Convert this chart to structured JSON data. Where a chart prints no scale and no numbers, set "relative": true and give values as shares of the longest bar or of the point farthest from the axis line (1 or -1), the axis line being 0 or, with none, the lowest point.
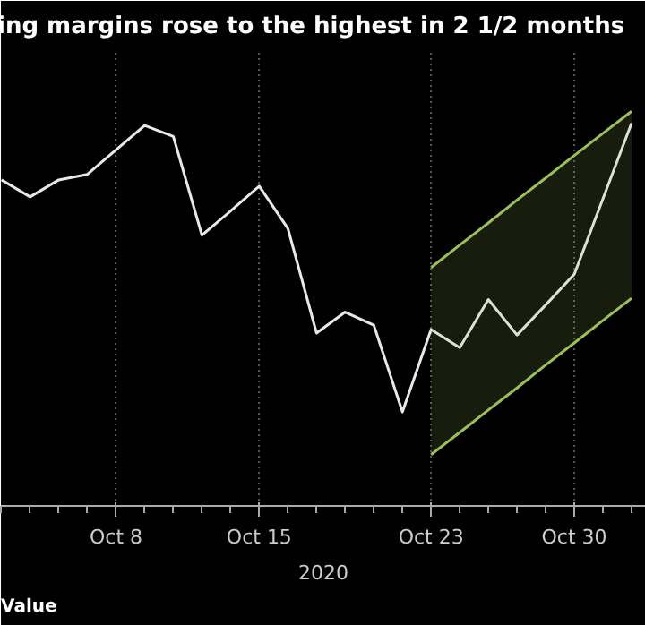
{
  "chart_data": {
    "type": "line",
    "title": "ing margins rose to the highest in 2 1/2 months",
    "xlabel": "2020",
    "annotations": [
      "Value"
    ],
    "relative": true,
    "grid": "x",
    "categories": [
      null,
      null,
      null,
      null,
      "Oct 8",
      null,
      null,
      null,
      null,
      "Oct 15",
      null,
      null,
      null,
      null,
      null,
      "Oct 23",
      null,
      null,
      null,
      null,
      "Oct 30",
      null,
      null
    ],
    "series": [
      {
        "color": "#e8e8e8",
        "values": [
          0.826,
          0.783,
          0.826,
          0.84,
          0.902,
          0.964,
          0.936,
          0.686,
          0.747,
          0.81,
          0.703,
          0.438,
          0.491,
          0.458,
          0.238,
          0.447,
          0.401,
          0.523,
          0.433,
          0.509,
          0.587,
          0.778,
          0.97
        ]
      },
      {
        "color": "#9cbf5a",
        "values": [
          null,
          null,
          null,
          null,
          null,
          null,
          null,
          null,
          null,
          null,
          null,
          null,
          null,
          null,
          null,
          0.13,
          0.186,
          0.243,
          0.299,
          0.357,
          0.413,
          0.47,
          0.526
        ],
        "lower": [
          null,
          null,
          null,
          null,
          null,
          null,
          null,
          null,
          null,
          null,
          null,
          null,
          null,
          null,
          null,
          0.13,
          0.186,
          0.243,
          0.299,
          0.357,
          0.413,
          0.47,
          0.526
        ],
        "upper": [
          null,
          null,
          null,
          null,
          null,
          null,
          null,
          null,
          null,
          null,
          null,
          null,
          null,
          null,
          null,
          0.604,
          0.661,
          0.717,
          0.775,
          0.831,
          0.888,
          0.944,
          1.0
        ]
      },
      {
        "color": "#9cbf5a",
        "values": [
          null,
          null,
          null,
          null,
          null,
          null,
          null,
          null,
          null,
          null,
          null,
          null,
          null,
          null,
          null,
          0.604,
          0.661,
          0.717,
          0.775,
          0.831,
          0.888,
          0.944,
          1.0
        ]
      }
    ]
  }
}
